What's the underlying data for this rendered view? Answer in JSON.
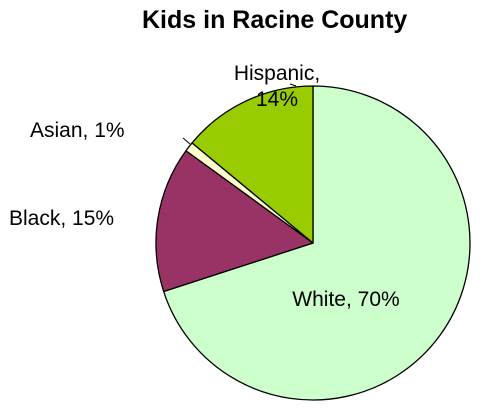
{
  "chart_data": {
    "type": "pie",
    "title": "Kids in Racine County",
    "slices": [
      {
        "label": "White",
        "value": 70,
        "value_text": "70%",
        "color": "#ccffcc"
      },
      {
        "label": "Black",
        "value": 15,
        "value_text": "15%",
        "color": "#993366"
      },
      {
        "label": "Asian",
        "value": 1,
        "value_text": "1%",
        "color": "#ffffcc"
      },
      {
        "label": "Hispanic",
        "value": 14,
        "value_text": "14%",
        "color": "#99cc00"
      }
    ],
    "start": "12 o'clock",
    "direction": "clockwise",
    "legend": "none"
  }
}
